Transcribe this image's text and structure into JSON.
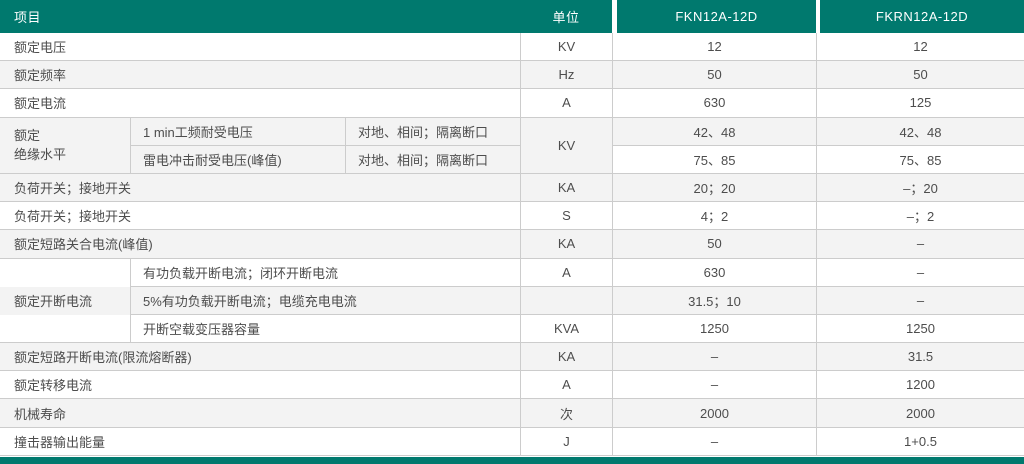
{
  "colors": {
    "accent": "#00796e",
    "stripe": "#f3f3f3",
    "border": "#cccccc",
    "text": "#4d4d4d",
    "header_text": "#ffffff"
  },
  "table": {
    "header": {
      "item": "项目",
      "unit": "单位",
      "col1": "FKN12A-12D",
      "col2": "FKRN12A-12D"
    },
    "merged": {
      "insulation": {
        "line1": "额定",
        "line2": "绝缘水平",
        "unit": "KV"
      },
      "breaking": {
        "label": "额定开断电流"
      }
    },
    "rows": [
      {
        "label": "额定电压",
        "unit": "KV",
        "v1": "12",
        "v2": "12"
      },
      {
        "label": "额定频率",
        "unit": "Hz",
        "v1": "50",
        "v2": "50"
      },
      {
        "label": "额定电流",
        "unit": "A",
        "v1": "630",
        "v2": "125"
      },
      {
        "sub": "1 min工频耐受电压",
        "cond": "对地、相间；隔离断口",
        "v1": "42、48",
        "v2": "42、48"
      },
      {
        "sub": "雷电冲击耐受电压(峰值)",
        "cond": "对地、相间；隔离断口",
        "v1": "75、85",
        "v2": "75、85"
      },
      {
        "label": "负荷开关；接地开关",
        "unit": "KA",
        "v1": "20；20",
        "v2": "–；20"
      },
      {
        "label": "负荷开关；接地开关",
        "unit": "S",
        "v1": "4；2",
        "v2": "–；2"
      },
      {
        "label": "额定短路关合电流(峰值)",
        "unit": "KA",
        "v1": "50",
        "v2": "–"
      },
      {
        "sub": "有功负载开断电流；闭环开断电流",
        "unit": "A",
        "v1": "630",
        "v2": "–"
      },
      {
        "sub": "5%有功负载开断电流；电缆充电电流",
        "unit": "",
        "v1": "31.5；10",
        "v2": "–"
      },
      {
        "sub": "开断空载变压器容量",
        "unit": "KVA",
        "v1": "1250",
        "v2": "1250"
      },
      {
        "label": "额定短路开断电流(限流熔断器)",
        "unit": "KA",
        "v1": "–",
        "v2": "31.5"
      },
      {
        "label": "额定转移电流",
        "unit": "A",
        "v1": "–",
        "v2": "1200"
      },
      {
        "label": "机械寿命",
        "unit": "次",
        "v1": "2000",
        "v2": "2000"
      },
      {
        "label": "撞击器输出能量",
        "unit": "J",
        "v1": "–",
        "v2": "1+0.5"
      }
    ]
  }
}
